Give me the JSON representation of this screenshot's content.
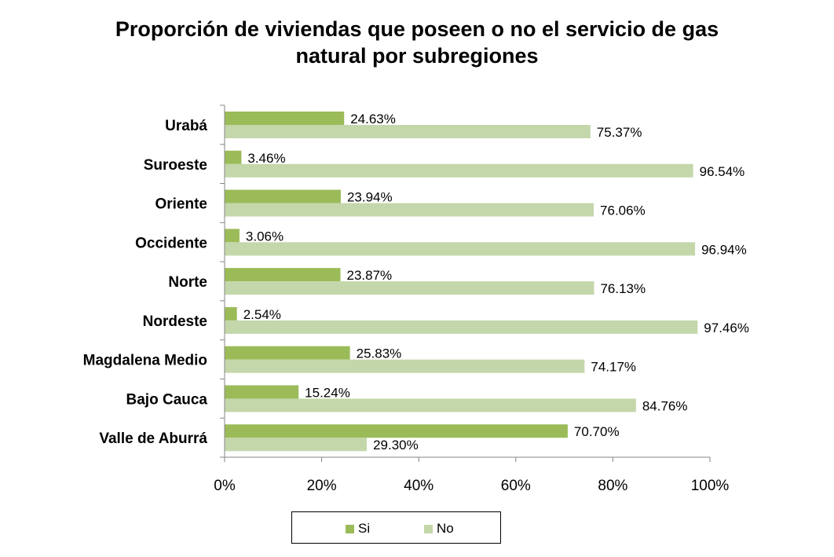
{
  "chart_data": {
    "type": "bar",
    "orientation": "horizontal",
    "title": "Proporción de viviendas que poseen o no el servicio de gas natural por subregiones",
    "title_lines": [
      "Proporción de viviendas que poseen o no el servicio de gas",
      "natural por subregiones"
    ],
    "categories": [
      "Urabá",
      "Suroeste",
      "Oriente",
      "Occidente",
      "Norte",
      "Nordeste",
      "Magdalena Medio",
      "Bajo Cauca",
      "Valle de Aburrá"
    ],
    "series": [
      {
        "name": "Si",
        "color": "#9bbb59",
        "values": [
          24.63,
          3.46,
          23.94,
          3.06,
          23.87,
          2.54,
          25.83,
          15.24,
          70.7
        ],
        "labels": [
          "24.63%",
          "3.46%",
          "23.94%",
          "3.06%",
          "23.87%",
          "2.54%",
          "25.83%",
          "15.24%",
          "70.70%"
        ]
      },
      {
        "name": "No",
        "color": "#c4d7aa",
        "values": [
          75.37,
          96.54,
          76.06,
          96.94,
          76.13,
          97.46,
          74.17,
          84.76,
          29.3
        ],
        "labels": [
          "75.37%",
          "96.54%",
          "76.06%",
          "96.94%",
          "76.13%",
          "97.46%",
          "74.17%",
          "84.76%",
          "29.30%"
        ]
      }
    ],
    "xlim": [
      0,
      100
    ],
    "xticks": [
      0,
      20,
      40,
      60,
      80,
      100
    ],
    "xtick_labels": [
      "0%",
      "20%",
      "40%",
      "60%",
      "80%",
      "100%"
    ],
    "xlabel": "",
    "ylabel": "",
    "grid": false,
    "legend_position": "bottom"
  }
}
